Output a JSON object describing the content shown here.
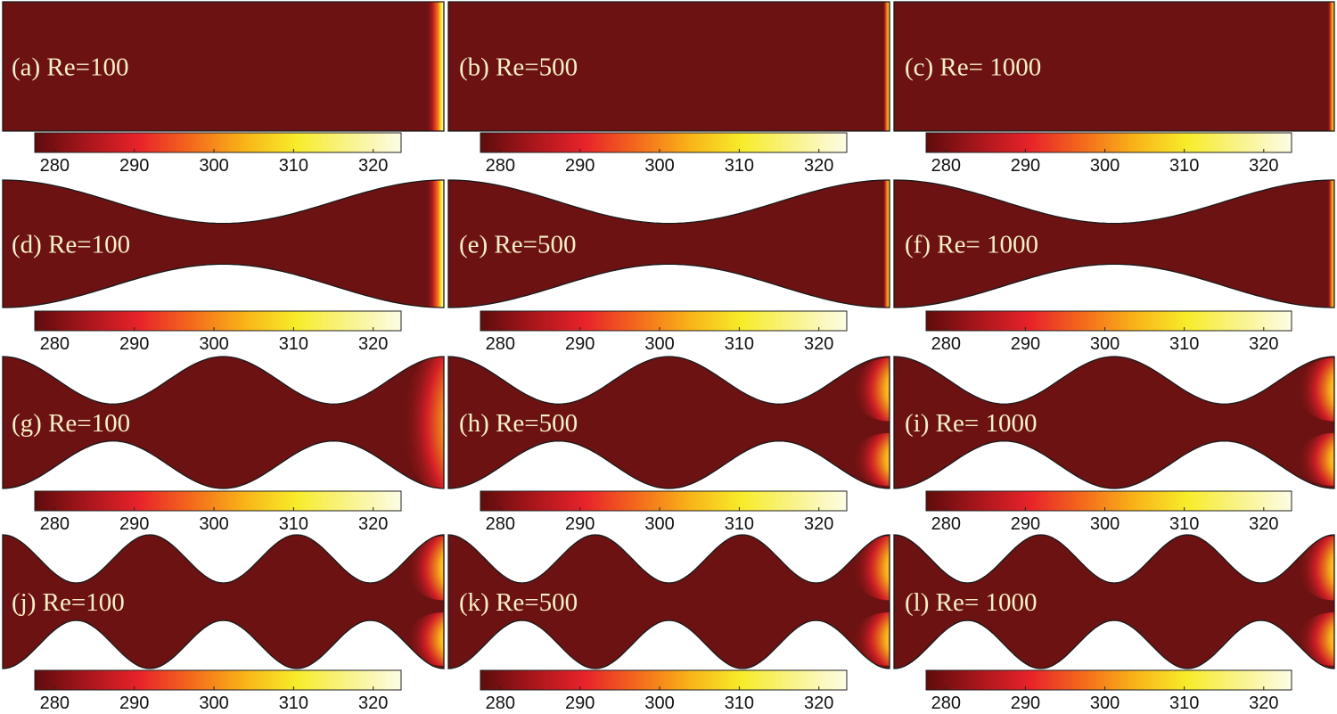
{
  "colors": {
    "domain_fill": "#6d1212",
    "outline": "#1a1a1a",
    "label_text": "#f6efc8",
    "colorbar_stops": [
      "#5e0c0c",
      "#a8161c",
      "#e8232a",
      "#f46a1c",
      "#f9b318",
      "#f7ec2a",
      "#f9f38a",
      "#fdfce6"
    ]
  },
  "colorbar": {
    "ticks": [
      "280",
      "290",
      "300",
      "310",
      "320"
    ],
    "tick_values": [
      280,
      290,
      300,
      310,
      320
    ],
    "min": 277.5,
    "max": 323.5
  },
  "panels": [
    {
      "label": "(a) Re=100",
      "waves": 0,
      "hot": "inlet",
      "re": 100
    },
    {
      "label": "(b) Re=500",
      "waves": 0,
      "hot": "thin",
      "re": 500
    },
    {
      "label": "(c) Re= 1000",
      "waves": 0,
      "hot": "thin",
      "re": 1000
    },
    {
      "label": "(d) Re=100",
      "waves": 2,
      "hot": "inlet",
      "re": 100
    },
    {
      "label": "(e) Re=500",
      "waves": 2,
      "hot": "thin",
      "re": 500
    },
    {
      "label": "(f) Re= 1000",
      "waves": 2,
      "hot": "thin",
      "re": 1000
    },
    {
      "label": "(g) Re=100",
      "waves": 4,
      "hot": "plume",
      "re": 100
    },
    {
      "label": "(h) Re=500",
      "waves": 4,
      "hot": "jets",
      "re": 500
    },
    {
      "label": "(i) Re= 1000",
      "waves": 4,
      "hot": "jets",
      "re": 1000
    },
    {
      "label": "(j) Re=100",
      "waves": 6,
      "hot": "jets",
      "re": 100
    },
    {
      "label": "(k) Re=500",
      "waves": 6,
      "hot": "jets",
      "re": 500
    },
    {
      "label": "(l) Re= 1000",
      "waves": 6,
      "hot": "jets",
      "re": 1000
    }
  ]
}
